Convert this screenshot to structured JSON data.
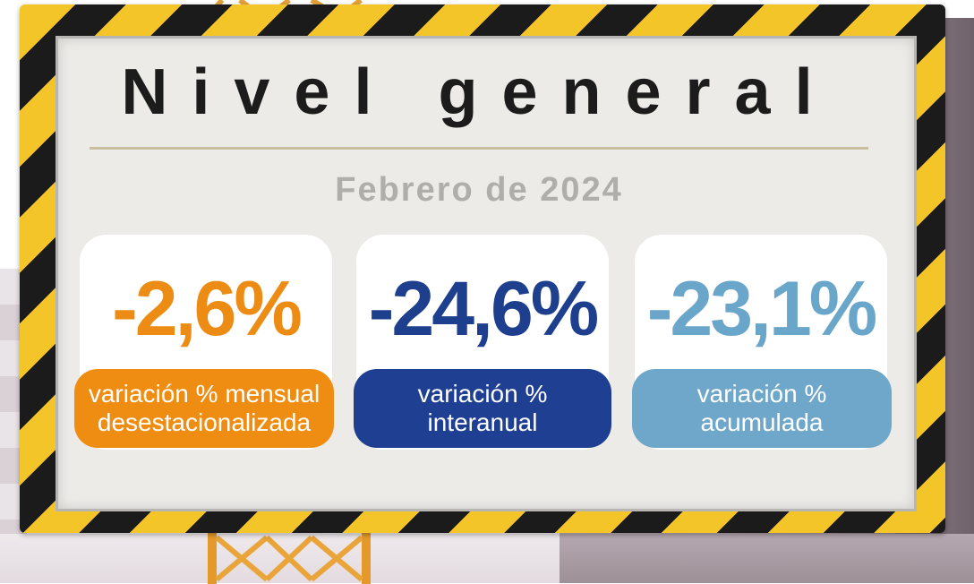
{
  "sign": {
    "title": "Nivel general",
    "subtitle": "Febrero de 2024"
  },
  "cards": [
    {
      "value": "-2,6%",
      "label_line1": "variación % mensual",
      "label_line2": "desestacionalizada"
    },
    {
      "value": "-24,6%",
      "label_line1": "variación %",
      "label_line2": "interanual"
    },
    {
      "value": "-23,1%",
      "label_line1": "variación %",
      "label_line2": "acumulada"
    }
  ],
  "colors": {
    "monthly": "#ED8C14",
    "interannual": "#1E3F8E",
    "accumulated": "#6AA6C9",
    "frame_yellow": "#F4C528",
    "frame_black": "#1B1B1B"
  }
}
